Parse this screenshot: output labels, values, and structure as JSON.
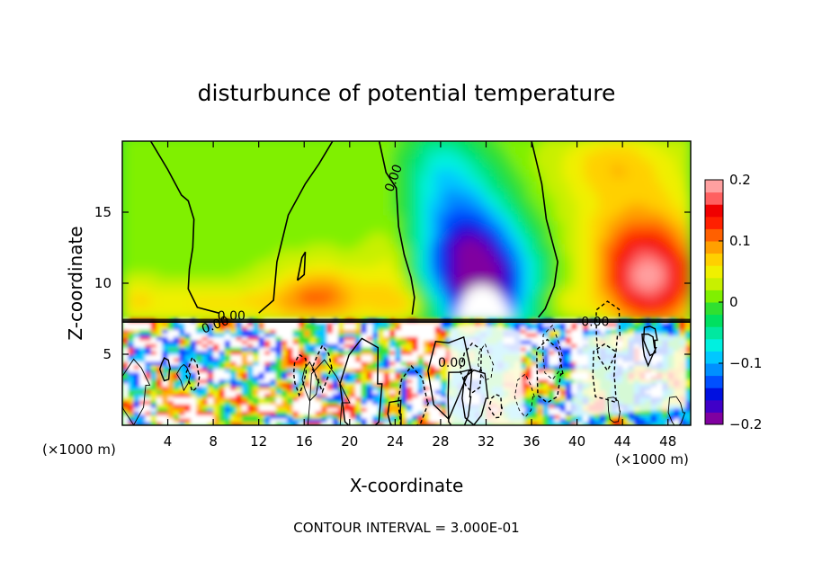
{
  "chart_data": {
    "type": "heatmap",
    "title": "disturbunce of potential temperature",
    "xlabel": "X-coordinate",
    "ylabel": "Z-coordinate",
    "x_unit_left": "(×1000 m)",
    "x_unit_right": "(×1000 m)",
    "footer": "CONTOUR INTERVAL = 3.000E-01",
    "xlim": [
      0,
      50
    ],
    "ylim": [
      0,
      20
    ],
    "x_ticks": [
      4,
      8,
      12,
      16,
      20,
      24,
      28,
      32,
      36,
      40,
      44,
      48
    ],
    "x_tick_labels": [
      "4",
      "8",
      "12",
      "16",
      "20",
      "24",
      "28",
      "32",
      "36",
      "40",
      "44",
      "48"
    ],
    "y_ticks": [
      5,
      10,
      15
    ],
    "y_tick_labels": [
      "5",
      "10",
      "15"
    ],
    "colorbar": {
      "min": -0.2,
      "max": 0.2,
      "ticks": [
        0.2,
        0.1,
        0,
        -0.1,
        -0.2
      ],
      "tick_labels": [
        "0.2",
        "0.1",
        "0",
        "−0.1",
        "−0.2"
      ],
      "colors": [
        "#8000a0",
        "#4000c8",
        "#0010e0",
        "#0050ff",
        "#0090ff",
        "#00c8ff",
        "#00f0e0",
        "#00e8a0",
        "#00e060",
        "#30e030",
        "#80f000",
        "#c8f000",
        "#f0f000",
        "#ffd000",
        "#ffa000",
        "#ff6000",
        "#ff2000",
        "#f00000",
        "#ff6060",
        "#ffa0a0"
      ]
    },
    "contour_labels": [
      {
        "text": "0.00",
        "x": 24.2,
        "y": 17.3,
        "rotate": -70
      },
      {
        "text": "0.00",
        "x": 9.6,
        "y": 7.4,
        "rotate": 0
      },
      {
        "text": "0.00",
        "x": 8.3,
        "y": 6.8,
        "rotate": -20
      },
      {
        "text": "0.00",
        "x": 29.0,
        "y": 4.1,
        "rotate": 0
      },
      {
        "text": "0.00",
        "x": 41.6,
        "y": 7.0,
        "rotate": 0
      }
    ]
  }
}
